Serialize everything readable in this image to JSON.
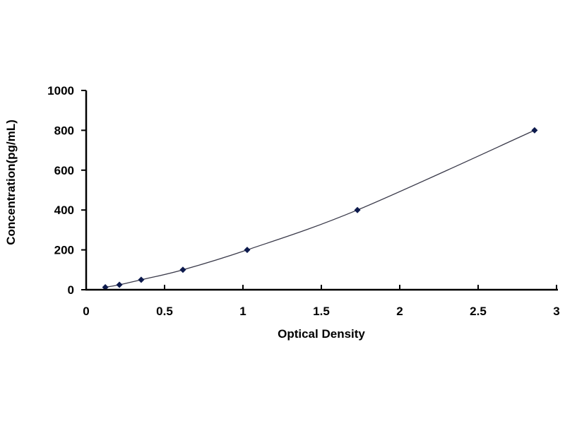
{
  "chart_data": {
    "type": "line",
    "xlabel": "Optical Density",
    "ylabel": "Concentration(pg/mL)",
    "xlim": [
      0,
      3
    ],
    "ylim": [
      0,
      1000
    ],
    "xticks": [
      "0",
      "0.5",
      "1",
      "1.5",
      "2",
      "2.5",
      "3"
    ],
    "yticks": [
      "0",
      "200",
      "400",
      "600",
      "800",
      "1000"
    ],
    "grid": false,
    "marker": "diamond",
    "colors": {
      "marker": "#0d1a4d",
      "line": "#3a3a4a",
      "axis": "#000000"
    },
    "series": [
      {
        "x": [
          0.122,
          0.212,
          0.351,
          0.617,
          1.027,
          1.73,
          2.86
        ],
        "y": [
          12.5,
          25,
          50,
          100,
          200,
          400,
          800
        ]
      }
    ]
  }
}
